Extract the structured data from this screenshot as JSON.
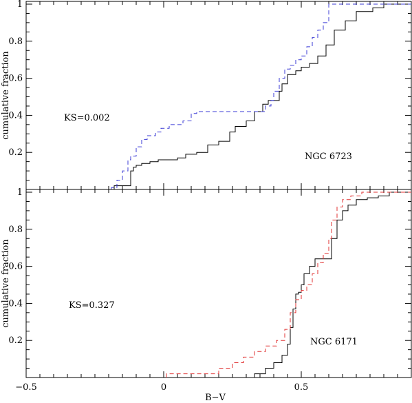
{
  "chart_data": [
    {
      "type": "line",
      "step": true,
      "annotation": "NGC 6723",
      "ks_text": "KS=0.002",
      "ylabel": "cumulative fraction",
      "xlabel": "",
      "xlim": [
        -0.5,
        0.9
      ],
      "ylim": [
        0,
        1.0
      ],
      "yticks": [
        "0.2",
        "0.4",
        "0.6",
        "0.8",
        "1"
      ],
      "grid": false,
      "series": [
        {
          "style": "solid",
          "color": "#000000",
          "x": [
            -0.18,
            -0.12,
            -0.11,
            -0.1,
            -0.08,
            -0.05,
            -0.02,
            0.02,
            0.05,
            0.08,
            0.12,
            0.16,
            0.2,
            0.24,
            0.26,
            0.3,
            0.33,
            0.36,
            0.38,
            0.4,
            0.42,
            0.43,
            0.45,
            0.48,
            0.5,
            0.53,
            0.56,
            0.59,
            0.62,
            0.66,
            0.7,
            0.76,
            0.8,
            0.9
          ],
          "y": [
            0.02,
            0.1,
            0.12,
            0.13,
            0.14,
            0.15,
            0.16,
            0.16,
            0.17,
            0.19,
            0.2,
            0.24,
            0.26,
            0.31,
            0.34,
            0.37,
            0.42,
            0.46,
            0.48,
            0.48,
            0.53,
            0.57,
            0.62,
            0.64,
            0.66,
            0.68,
            0.72,
            0.78,
            0.86,
            0.91,
            0.96,
            0.98,
            1.0,
            1.0
          ]
        },
        {
          "style": "dashed",
          "color": "#3b3bd6",
          "x": [
            -0.19,
            -0.17,
            -0.15,
            -0.13,
            -0.12,
            -0.1,
            -0.08,
            -0.06,
            -0.03,
            -0.01,
            0.02,
            0.07,
            0.1,
            0.12,
            0.2,
            0.35,
            0.37,
            0.39,
            0.4,
            0.42,
            0.44,
            0.46,
            0.48,
            0.5,
            0.52,
            0.54,
            0.56,
            0.58,
            0.6,
            0.9
          ],
          "y": [
            0.01,
            0.05,
            0.1,
            0.16,
            0.18,
            0.23,
            0.27,
            0.29,
            0.31,
            0.33,
            0.35,
            0.37,
            0.41,
            0.42,
            0.42,
            0.42,
            0.45,
            0.48,
            0.53,
            0.6,
            0.65,
            0.67,
            0.7,
            0.72,
            0.77,
            0.82,
            0.86,
            0.9,
            1.0,
            1.0
          ]
        }
      ]
    },
    {
      "type": "line",
      "step": true,
      "annotation": "NGC 6171",
      "ks_text": "KS=0.327",
      "ylabel": "cumulative fraction",
      "xlabel": "B−V",
      "xlim": [
        -0.5,
        0.9
      ],
      "ylim": [
        0,
        1.0
      ],
      "xticks": [
        "−0.5",
        "0",
        "0.5"
      ],
      "yticks": [
        "0.2",
        "0.4",
        "0.6",
        "0.8",
        "1"
      ],
      "grid": false,
      "series": [
        {
          "style": "solid",
          "color": "#000000",
          "x": [
            0.33,
            0.37,
            0.4,
            0.43,
            0.45,
            0.46,
            0.47,
            0.48,
            0.49,
            0.5,
            0.51,
            0.53,
            0.55,
            0.57,
            0.59,
            0.61,
            0.63,
            0.65,
            0.67,
            0.7,
            0.74,
            0.78,
            0.82,
            0.9
          ],
          "y": [
            0.02,
            0.05,
            0.08,
            0.12,
            0.18,
            0.27,
            0.37,
            0.45,
            0.46,
            0.5,
            0.56,
            0.6,
            0.64,
            0.64,
            0.64,
            0.75,
            0.85,
            0.9,
            0.93,
            0.96,
            0.97,
            0.98,
            1.0,
            1.0
          ]
        },
        {
          "style": "dashed",
          "color": "#e03030",
          "x": [
            0.01,
            0.2,
            0.25,
            0.29,
            0.33,
            0.37,
            0.41,
            0.44,
            0.46,
            0.48,
            0.5,
            0.52,
            0.54,
            0.56,
            0.58,
            0.6,
            0.61,
            0.63,
            0.65,
            0.68,
            0.72,
            0.9
          ],
          "y": [
            0.02,
            0.05,
            0.08,
            0.11,
            0.14,
            0.17,
            0.2,
            0.26,
            0.35,
            0.42,
            0.47,
            0.5,
            0.56,
            0.62,
            0.67,
            0.75,
            0.85,
            0.92,
            0.96,
            0.98,
            1.0,
            1.0
          ]
        }
      ]
    }
  ]
}
